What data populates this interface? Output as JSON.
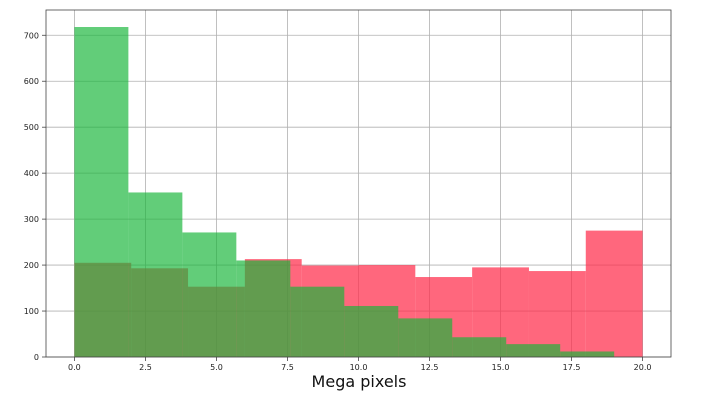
{
  "chart_data": {
    "type": "bar",
    "subtype": "overlapping-histogram",
    "xlabel": "Mega pixels",
    "ylabel": "",
    "title": "",
    "xlim": [
      -1.0,
      21.0
    ],
    "ylim": [
      0,
      755
    ],
    "grid": true,
    "x_ticks": [
      {
        "value": 0.0,
        "label": "0.0"
      },
      {
        "value": 2.5,
        "label": "2.5"
      },
      {
        "value": 5.0,
        "label": "5.0"
      },
      {
        "value": 7.5,
        "label": "7.5"
      },
      {
        "value": 10.0,
        "label": "10.0"
      },
      {
        "value": 12.5,
        "label": "12.5"
      },
      {
        "value": 15.0,
        "label": "15.0"
      },
      {
        "value": 17.5,
        "label": "17.5"
      },
      {
        "value": 20.0,
        "label": "20.0"
      }
    ],
    "y_ticks": [
      {
        "value": 0,
        "label": "0"
      },
      {
        "value": 100,
        "label": "100"
      },
      {
        "value": 200,
        "label": "200"
      },
      {
        "value": 300,
        "label": "300"
      },
      {
        "value": 400,
        "label": "400"
      },
      {
        "value": 500,
        "label": "500"
      },
      {
        "value": 600,
        "label": "600"
      },
      {
        "value": 700,
        "label": "700"
      }
    ],
    "series": [
      {
        "color": "#ff2d4b",
        "opacity": 0.72,
        "bin_edges": [
          0.0,
          2.0,
          4.0,
          6.0,
          8.0,
          10.0,
          12.0,
          14.0,
          16.0,
          18.0,
          20.0
        ],
        "values": [
          205,
          193,
          153,
          213,
          199,
          200,
          174,
          195,
          187,
          275
        ]
      },
      {
        "color": "#17b53a",
        "opacity": 0.68,
        "bin_edges": [
          0.0,
          1.9,
          3.8,
          5.7,
          7.6,
          9.5,
          11.4,
          13.3,
          15.2,
          17.1,
          19.0
        ],
        "values": [
          718,
          358,
          271,
          210,
          153,
          111,
          84,
          43,
          28,
          12
        ]
      }
    ]
  }
}
